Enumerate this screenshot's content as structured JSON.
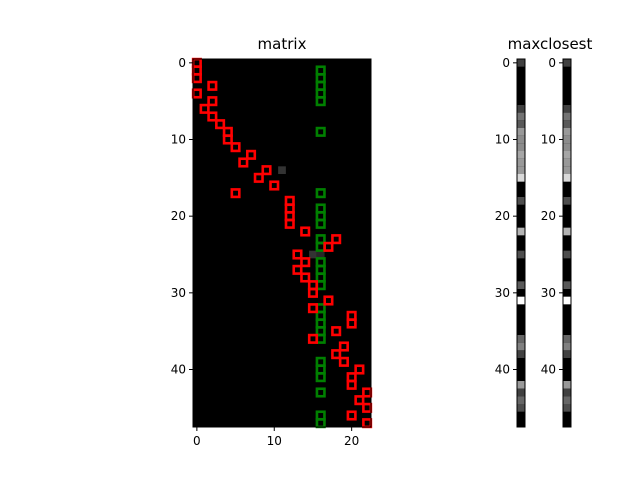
{
  "chart_data": [
    {
      "type": "heatmap",
      "title": "matrix",
      "rows": 48,
      "cols": 23,
      "x_ticks": [
        0,
        10,
        20
      ],
      "y_ticks": [
        0,
        10,
        20,
        30,
        40
      ],
      "background": "#000000",
      "gray_cells": [
        [
          11,
          14,
          0.2
        ],
        [
          15,
          25,
          0.2
        ],
        [
          16,
          25,
          0.15
        ]
      ],
      "red_markers": [
        [
          0,
          0
        ],
        [
          0,
          1
        ],
        [
          0,
          2
        ],
        [
          2,
          3
        ],
        [
          0,
          4
        ],
        [
          2,
          5
        ],
        [
          1,
          6
        ],
        [
          2,
          7
        ],
        [
          3,
          8
        ],
        [
          4,
          9
        ],
        [
          4,
          10
        ],
        [
          5,
          11
        ],
        [
          7,
          12
        ],
        [
          6,
          13
        ],
        [
          9,
          14
        ],
        [
          8,
          15
        ],
        [
          10,
          16
        ],
        [
          5,
          17
        ],
        [
          12,
          18
        ],
        [
          12,
          19
        ],
        [
          12,
          20
        ],
        [
          12,
          21
        ],
        [
          14,
          22
        ],
        [
          18,
          23
        ],
        [
          17,
          24
        ],
        [
          13,
          25
        ],
        [
          14,
          26
        ],
        [
          13,
          27
        ],
        [
          14,
          28
        ],
        [
          15,
          29
        ],
        [
          15,
          30
        ],
        [
          17,
          31
        ],
        [
          15,
          32
        ],
        [
          20,
          33
        ],
        [
          20,
          34
        ],
        [
          18,
          35
        ],
        [
          15,
          36
        ],
        [
          19,
          37
        ],
        [
          18,
          38
        ],
        [
          19,
          39
        ],
        [
          21,
          40
        ],
        [
          20,
          41
        ],
        [
          20,
          42
        ],
        [
          22,
          43
        ],
        [
          21,
          44
        ],
        [
          22,
          45
        ],
        [
          20,
          46
        ],
        [
          22,
          47
        ]
      ],
      "green_markers": [
        [
          16,
          1
        ],
        [
          16,
          2
        ],
        [
          16,
          3
        ],
        [
          16,
          4
        ],
        [
          16,
          5
        ],
        [
          16,
          9
        ],
        [
          16,
          17
        ],
        [
          16,
          19
        ],
        [
          16,
          20
        ],
        [
          16,
          21
        ],
        [
          16,
          23
        ],
        [
          16,
          24
        ],
        [
          16,
          26
        ],
        [
          16,
          27
        ],
        [
          16,
          28
        ],
        [
          16,
          29
        ],
        [
          16,
          32
        ],
        [
          16,
          33
        ],
        [
          16,
          34
        ],
        [
          16,
          35
        ],
        [
          16,
          36
        ],
        [
          16,
          39
        ],
        [
          16,
          40
        ],
        [
          16,
          41
        ],
        [
          16,
          43
        ],
        [
          16,
          46
        ],
        [
          16,
          47
        ]
      ],
      "marker_colors": {
        "red": "#ff0000",
        "green": "#008000"
      }
    },
    {
      "type": "heatmap",
      "title": "maxclosest",
      "rows": 48,
      "y_ticks": [
        0,
        10,
        20,
        30,
        40
      ],
      "column_values": [
        0.25,
        0,
        0,
        0,
        0,
        0,
        0.25,
        0.45,
        0.35,
        0.6,
        0.55,
        0.55,
        0.65,
        0.6,
        0.6,
        0.85,
        0,
        0,
        0.3,
        0,
        0,
        0,
        0.7,
        0,
        0,
        0.3,
        0,
        0,
        0,
        0.35,
        0,
        1.0,
        0,
        0,
        0,
        0,
        0.4,
        0.5,
        0.25,
        0,
        0,
        0,
        0.6,
        0.25,
        0.4,
        0.3,
        0,
        0
      ]
    }
  ]
}
